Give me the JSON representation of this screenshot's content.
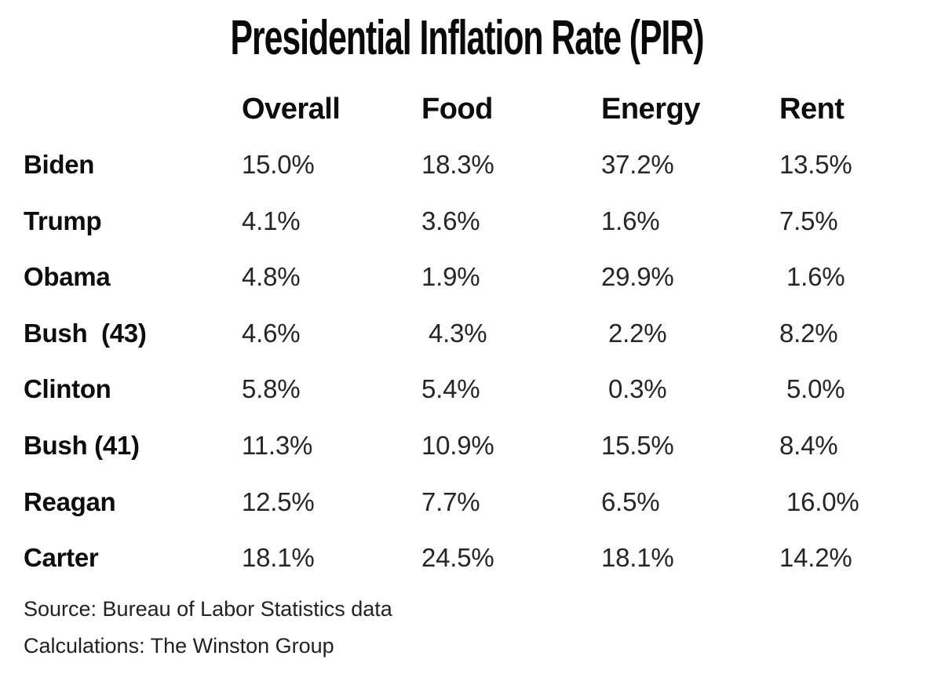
{
  "title": "Presidential Inflation Rate (PIR)",
  "table": {
    "columns": [
      "Overall",
      "Food",
      "Energy",
      "Rent"
    ],
    "rows": [
      {
        "label": "Biden",
        "values": [
          "15.0%",
          "18.3%",
          "37.2%",
          "13.5%"
        ]
      },
      {
        "label": "Trump",
        "values": [
          "4.1%",
          "3.6%",
          "1.6%",
          "7.5%"
        ]
      },
      {
        "label": "Obama",
        "values": [
          "4.8%",
          "1.9%",
          "29.9%",
          " 1.6%"
        ]
      },
      {
        "label": "Bush  (43)",
        "values": [
          "4.6%",
          " 4.3%",
          " 2.2%",
          "8.2%"
        ]
      },
      {
        "label": "Clinton",
        "values": [
          "5.8%",
          "5.4%",
          " 0.3%",
          " 5.0%"
        ]
      },
      {
        "label": "Bush (41)",
        "values": [
          "11.3%",
          "10.9%",
          "15.5%",
          "8.4%"
        ]
      },
      {
        "label": "Reagan",
        "values": [
          "12.5%",
          "7.7%",
          "6.5%",
          " 16.0%"
        ]
      },
      {
        "label": "Carter",
        "values": [
          "18.1%",
          "24.5%",
          "18.1%",
          "14.2%"
        ]
      }
    ]
  },
  "footer": {
    "source": "Source: Bureau of Labor Statistics data",
    "calculations": "Calculations: The Winston Group"
  },
  "colors": {
    "background": "#ffffff",
    "heading_text": "#0a0a0a",
    "value_text": "#262626"
  },
  "chart_data": {
    "type": "table",
    "title": "Presidential Inflation Rate (PIR)",
    "columns": [
      "Overall",
      "Food",
      "Energy",
      "Rent"
    ],
    "rows": [
      "Biden",
      "Trump",
      "Obama",
      "Bush (43)",
      "Clinton",
      "Bush (41)",
      "Reagan",
      "Carter"
    ],
    "series": [
      {
        "name": "Overall",
        "values": [
          15.0,
          4.1,
          4.8,
          4.6,
          5.8,
          11.3,
          12.5,
          18.1
        ]
      },
      {
        "name": "Food",
        "values": [
          18.3,
          3.6,
          1.9,
          4.3,
          5.4,
          10.9,
          7.7,
          24.5
        ]
      },
      {
        "name": "Energy",
        "values": [
          37.2,
          1.6,
          29.9,
          2.2,
          0.3,
          15.5,
          6.5,
          18.1
        ]
      },
      {
        "name": "Rent",
        "values": [
          13.5,
          7.5,
          1.6,
          8.2,
          5.0,
          8.4,
          16.0,
          14.2
        ]
      }
    ],
    "unit": "%",
    "source": "Source: Bureau of Labor Statistics data",
    "calculations": "Calculations: The Winston Group"
  }
}
